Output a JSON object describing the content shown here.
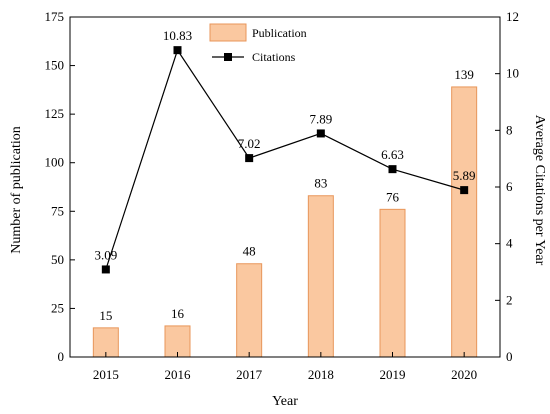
{
  "chart_data": {
    "type": "bar",
    "categories": [
      "2015",
      "2016",
      "2017",
      "2018",
      "2019",
      "2020"
    ],
    "series": [
      {
        "name": "Publication",
        "type": "bar",
        "axis": "left",
        "values": [
          15,
          16,
          48,
          83,
          76,
          139
        ],
        "labels": [
          "15",
          "16",
          "48",
          "83",
          "76",
          "139"
        ],
        "color": "#fac8a0"
      },
      {
        "name": "Citations",
        "type": "line",
        "axis": "right",
        "values": [
          3.09,
          10.83,
          7.02,
          7.89,
          6.63,
          5.89
        ],
        "labels": [
          "3.09",
          "10.83",
          "7.02",
          "7.89",
          "6.63",
          "5.89"
        ],
        "color": "#000000"
      }
    ],
    "xlabel": "Year",
    "ylabel": "Number of publication",
    "y2label": "Average Citations per Year",
    "ylim": [
      0,
      175
    ],
    "y2lim": [
      0,
      12
    ],
    "yticks": [
      0,
      25,
      50,
      75,
      100,
      125,
      150,
      175
    ],
    "y2ticks": [
      0,
      2,
      4,
      6,
      8,
      10,
      12
    ],
    "legend_position": "top-center",
    "grid": false,
    "bar_edge_color": "#e8965a"
  }
}
